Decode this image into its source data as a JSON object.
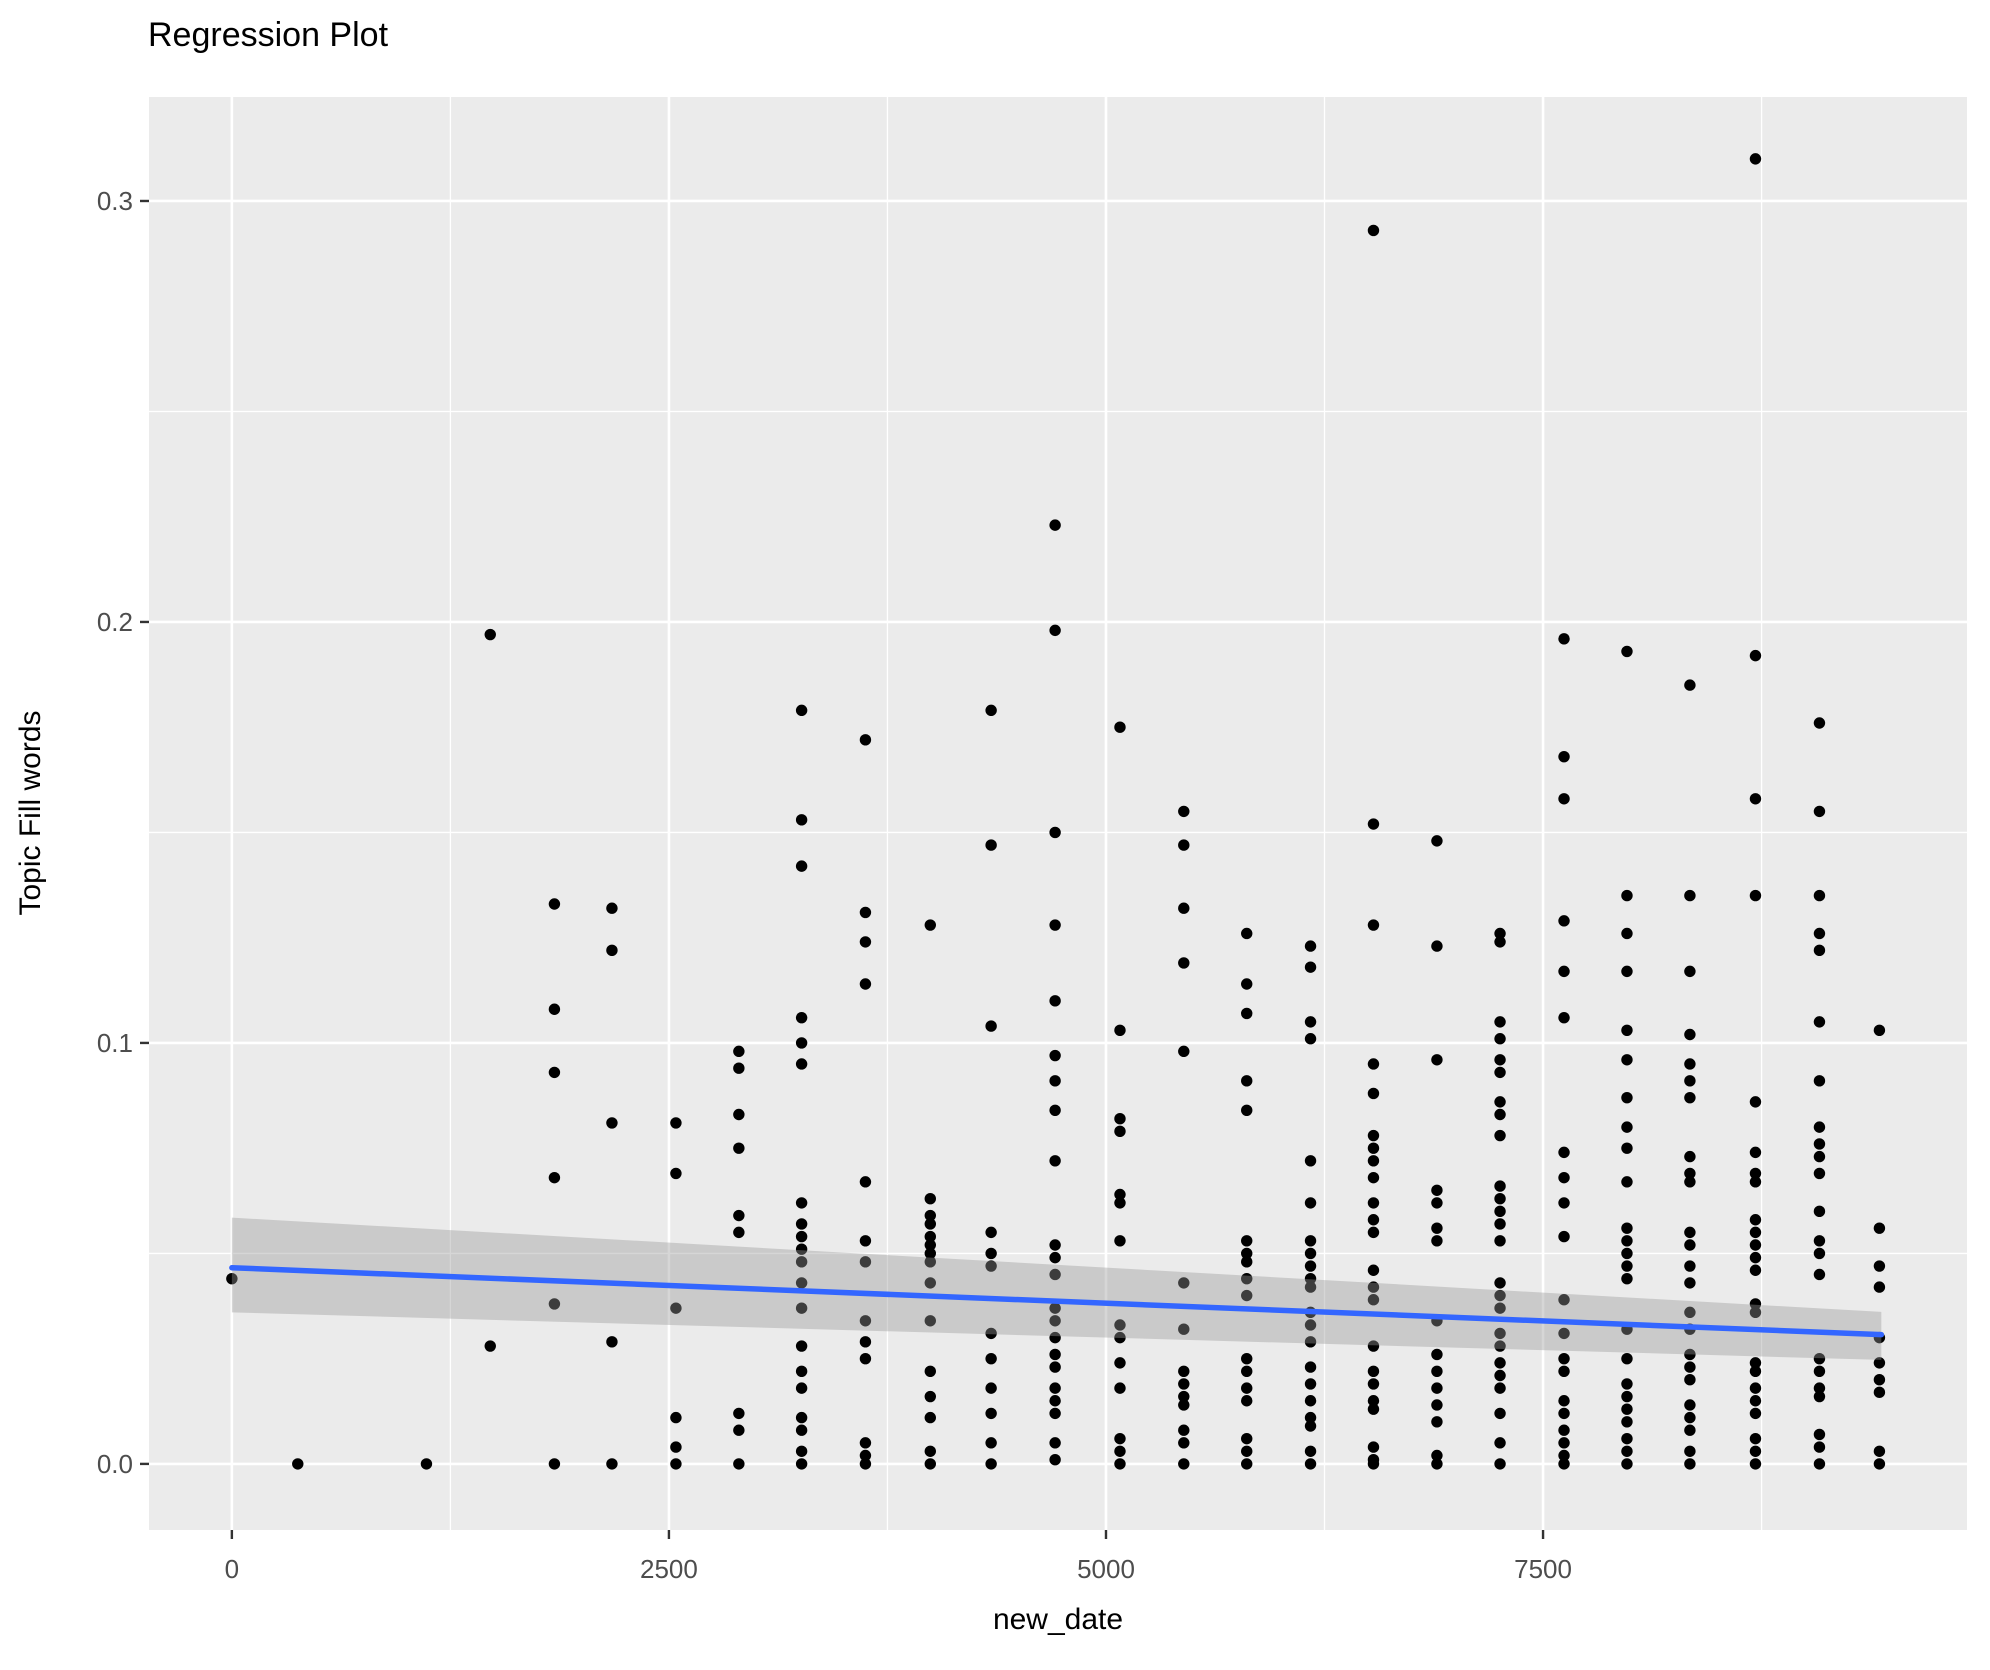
{
  "chart_data": {
    "type": "scatter",
    "title": "Regression Plot",
    "xlabel": "new_date",
    "ylabel": "Topic Fill words",
    "x_ticks": [
      0,
      2500,
      5000,
      7500
    ],
    "x_tick_labels": [
      "0",
      "2500",
      "5000",
      "7500"
    ],
    "x_minor_ticks": [
      1250,
      3750,
      6250,
      8750
    ],
    "y_ticks": [
      0.0,
      0.1,
      0.2,
      0.3
    ],
    "y_tick_labels": [
      "0.0",
      "0.1",
      "0.2",
      "0.3"
    ],
    "y_minor_ticks": [
      0.05,
      0.15,
      0.25
    ],
    "xlim": [
      -474,
      9925
    ],
    "ylim": [
      -0.0157,
      0.3247
    ],
    "grid": "on",
    "legend_position": "none",
    "panel_color": "#EBEBEB",
    "grid_color": "#FFFFFF",
    "point_color": "#000000",
    "tick_label_color": "#4D4D4D",
    "axis_title_color": "#000000",
    "title_color": "#000000",
    "regression": {
      "type": "linear",
      "line_color": "#3366FF",
      "x_start": 0,
      "y_start": 0.0466,
      "x_end": 9435,
      "y_end": 0.0307,
      "ci_band": {
        "color": "#999999",
        "opacity": 0.4,
        "upper_start": 0.0585,
        "lower_start": 0.036,
        "upper_end": 0.0361,
        "lower_end": 0.0247
      }
    },
    "points": [
      [
        0,
        0.044
      ],
      [
        377,
        0.0
      ],
      [
        1113,
        0.0
      ],
      [
        1478,
        0.197
      ],
      [
        1478,
        0.028
      ],
      [
        1845,
        0.133
      ],
      [
        1845,
        0.108
      ],
      [
        1845,
        0.093
      ],
      [
        1845,
        0.068
      ],
      [
        1845,
        0.038
      ],
      [
        1845,
        0.0
      ],
      [
        2174,
        0.132
      ],
      [
        2174,
        0.122
      ],
      [
        2174,
        0.081
      ],
      [
        2174,
        0.029
      ],
      [
        2174,
        0.0
      ],
      [
        2540,
        0.081
      ],
      [
        2540,
        0.069
      ],
      [
        2540,
        0.037
      ],
      [
        2540,
        0.011
      ],
      [
        2540,
        0.004
      ],
      [
        2540,
        0.0
      ],
      [
        2900,
        0.098
      ],
      [
        2900,
        0.094
      ],
      [
        2900,
        0.083
      ],
      [
        2900,
        0.075
      ],
      [
        2900,
        0.059
      ],
      [
        2900,
        0.055
      ],
      [
        2900,
        0.012
      ],
      [
        2900,
        0.008
      ],
      [
        2900,
        0.0
      ],
      [
        3259,
        0.179
      ],
      [
        3259,
        0.153
      ],
      [
        3259,
        0.142
      ],
      [
        3259,
        0.106
      ],
      [
        3259,
        0.1
      ],
      [
        3259,
        0.095
      ],
      [
        3259,
        0.062
      ],
      [
        3259,
        0.057
      ],
      [
        3259,
        0.054
      ],
      [
        3259,
        0.051
      ],
      [
        3259,
        0.048
      ],
      [
        3259,
        0.043
      ],
      [
        3259,
        0.037
      ],
      [
        3259,
        0.028
      ],
      [
        3259,
        0.022
      ],
      [
        3259,
        0.018
      ],
      [
        3259,
        0.011
      ],
      [
        3259,
        0.008
      ],
      [
        3259,
        0.003
      ],
      [
        3259,
        0.0
      ],
      [
        3624,
        0.172
      ],
      [
        3624,
        0.131
      ],
      [
        3624,
        0.124
      ],
      [
        3624,
        0.114
      ],
      [
        3624,
        0.067
      ],
      [
        3624,
        0.053
      ],
      [
        3624,
        0.048
      ],
      [
        3624,
        0.034
      ],
      [
        3624,
        0.029
      ],
      [
        3624,
        0.025
      ],
      [
        3624,
        0.005
      ],
      [
        3624,
        0.002
      ],
      [
        3624,
        0.0
      ],
      [
        3995,
        0.128
      ],
      [
        3995,
        0.063
      ],
      [
        3995,
        0.059
      ],
      [
        3995,
        0.057
      ],
      [
        3995,
        0.054
      ],
      [
        3995,
        0.052
      ],
      [
        3995,
        0.05
      ],
      [
        3995,
        0.048
      ],
      [
        3995,
        0.043
      ],
      [
        3995,
        0.034
      ],
      [
        3995,
        0.022
      ],
      [
        3995,
        0.016
      ],
      [
        3995,
        0.011
      ],
      [
        3995,
        0.003
      ],
      [
        3995,
        0.0
      ],
      [
        4343,
        0.179
      ],
      [
        4343,
        0.147
      ],
      [
        4343,
        0.104
      ],
      [
        4343,
        0.055
      ],
      [
        4343,
        0.05
      ],
      [
        4343,
        0.047
      ],
      [
        4343,
        0.031
      ],
      [
        4343,
        0.025
      ],
      [
        4343,
        0.018
      ],
      [
        4343,
        0.012
      ],
      [
        4343,
        0.005
      ],
      [
        4343,
        0.0
      ],
      [
        4709,
        0.223
      ],
      [
        4709,
        0.198
      ],
      [
        4709,
        0.15
      ],
      [
        4709,
        0.128
      ],
      [
        4709,
        0.11
      ],
      [
        4709,
        0.097
      ],
      [
        4709,
        0.091
      ],
      [
        4709,
        0.084
      ],
      [
        4709,
        0.072
      ],
      [
        4709,
        0.052
      ],
      [
        4709,
        0.049
      ],
      [
        4709,
        0.045
      ],
      [
        4709,
        0.037
      ],
      [
        4709,
        0.034
      ],
      [
        4709,
        0.03
      ],
      [
        4709,
        0.026
      ],
      [
        4709,
        0.023
      ],
      [
        4709,
        0.018
      ],
      [
        4709,
        0.015
      ],
      [
        4709,
        0.012
      ],
      [
        4709,
        0.005
      ],
      [
        4709,
        0.001
      ],
      [
        5080,
        0.175
      ],
      [
        5080,
        0.103
      ],
      [
        5080,
        0.082
      ],
      [
        5080,
        0.079
      ],
      [
        5080,
        0.064
      ],
      [
        5080,
        0.062
      ],
      [
        5080,
        0.053
      ],
      [
        5080,
        0.033
      ],
      [
        5080,
        0.03
      ],
      [
        5080,
        0.024
      ],
      [
        5080,
        0.018
      ],
      [
        5080,
        0.006
      ],
      [
        5080,
        0.003
      ],
      [
        5080,
        0.0
      ],
      [
        5445,
        0.155
      ],
      [
        5445,
        0.147
      ],
      [
        5445,
        0.132
      ],
      [
        5445,
        0.119
      ],
      [
        5445,
        0.098
      ],
      [
        5445,
        0.043
      ],
      [
        5445,
        0.032
      ],
      [
        5445,
        0.022
      ],
      [
        5445,
        0.019
      ],
      [
        5445,
        0.016
      ],
      [
        5445,
        0.014
      ],
      [
        5445,
        0.008
      ],
      [
        5445,
        0.005
      ],
      [
        5445,
        0.0
      ],
      [
        5805,
        0.126
      ],
      [
        5805,
        0.114
      ],
      [
        5805,
        0.107
      ],
      [
        5805,
        0.091
      ],
      [
        5805,
        0.084
      ],
      [
        5805,
        0.053
      ],
      [
        5805,
        0.05
      ],
      [
        5805,
        0.048
      ],
      [
        5805,
        0.044
      ],
      [
        5805,
        0.04
      ],
      [
        5805,
        0.025
      ],
      [
        5805,
        0.022
      ],
      [
        5805,
        0.018
      ],
      [
        5805,
        0.015
      ],
      [
        5805,
        0.006
      ],
      [
        5805,
        0.003
      ],
      [
        5805,
        0.0
      ],
      [
        6170,
        0.123
      ],
      [
        6170,
        0.118
      ],
      [
        6170,
        0.105
      ],
      [
        6170,
        0.101
      ],
      [
        6170,
        0.072
      ],
      [
        6170,
        0.062
      ],
      [
        6170,
        0.053
      ],
      [
        6170,
        0.05
      ],
      [
        6170,
        0.047
      ],
      [
        6170,
        0.044
      ],
      [
        6170,
        0.042
      ],
      [
        6170,
        0.036
      ],
      [
        6170,
        0.033
      ],
      [
        6170,
        0.029
      ],
      [
        6170,
        0.023
      ],
      [
        6170,
        0.019
      ],
      [
        6170,
        0.015
      ],
      [
        6170,
        0.011
      ],
      [
        6170,
        0.009
      ],
      [
        6170,
        0.003
      ],
      [
        6170,
        0.0
      ],
      [
        6530,
        0.293
      ],
      [
        6530,
        0.152
      ],
      [
        6530,
        0.128
      ],
      [
        6530,
        0.095
      ],
      [
        6530,
        0.088
      ],
      [
        6530,
        0.078
      ],
      [
        6530,
        0.075
      ],
      [
        6530,
        0.072
      ],
      [
        6530,
        0.068
      ],
      [
        6530,
        0.062
      ],
      [
        6530,
        0.058
      ],
      [
        6530,
        0.055
      ],
      [
        6530,
        0.046
      ],
      [
        6530,
        0.042
      ],
      [
        6530,
        0.039
      ],
      [
        6530,
        0.028
      ],
      [
        6530,
        0.022
      ],
      [
        6530,
        0.019
      ],
      [
        6530,
        0.015
      ],
      [
        6530,
        0.013
      ],
      [
        6530,
        0.004
      ],
      [
        6530,
        0.001
      ],
      [
        6530,
        0.0
      ],
      [
        6893,
        0.148
      ],
      [
        6893,
        0.123
      ],
      [
        6893,
        0.096
      ],
      [
        6893,
        0.065
      ],
      [
        6893,
        0.062
      ],
      [
        6893,
        0.056
      ],
      [
        6893,
        0.053
      ],
      [
        6893,
        0.034
      ],
      [
        6893,
        0.026
      ],
      [
        6893,
        0.022
      ],
      [
        6893,
        0.018
      ],
      [
        6893,
        0.014
      ],
      [
        6893,
        0.01
      ],
      [
        6893,
        0.002
      ],
      [
        6893,
        0.0
      ],
      [
        7254,
        0.126
      ],
      [
        7254,
        0.124
      ],
      [
        7254,
        0.105
      ],
      [
        7254,
        0.101
      ],
      [
        7254,
        0.096
      ],
      [
        7254,
        0.093
      ],
      [
        7254,
        0.086
      ],
      [
        7254,
        0.083
      ],
      [
        7254,
        0.078
      ],
      [
        7254,
        0.066
      ],
      [
        7254,
        0.063
      ],
      [
        7254,
        0.06
      ],
      [
        7254,
        0.057
      ],
      [
        7254,
        0.053
      ],
      [
        7254,
        0.043
      ],
      [
        7254,
        0.04
      ],
      [
        7254,
        0.037
      ],
      [
        7254,
        0.031
      ],
      [
        7254,
        0.028
      ],
      [
        7254,
        0.024
      ],
      [
        7254,
        0.021
      ],
      [
        7254,
        0.018
      ],
      [
        7254,
        0.012
      ],
      [
        7254,
        0.005
      ],
      [
        7254,
        0.0
      ],
      [
        7620,
        0.196
      ],
      [
        7620,
        0.168
      ],
      [
        7620,
        0.158
      ],
      [
        7620,
        0.129
      ],
      [
        7620,
        0.117
      ],
      [
        7620,
        0.106
      ],
      [
        7620,
        0.074
      ],
      [
        7620,
        0.068
      ],
      [
        7620,
        0.062
      ],
      [
        7620,
        0.054
      ],
      [
        7620,
        0.039
      ],
      [
        7620,
        0.031
      ],
      [
        7620,
        0.025
      ],
      [
        7620,
        0.022
      ],
      [
        7620,
        0.015
      ],
      [
        7620,
        0.012
      ],
      [
        7620,
        0.008
      ],
      [
        7620,
        0.005
      ],
      [
        7620,
        0.002
      ],
      [
        7620,
        0.0
      ],
      [
        7980,
        0.193
      ],
      [
        7980,
        0.135
      ],
      [
        7980,
        0.126
      ],
      [
        7980,
        0.117
      ],
      [
        7980,
        0.103
      ],
      [
        7980,
        0.096
      ],
      [
        7980,
        0.087
      ],
      [
        7980,
        0.08
      ],
      [
        7980,
        0.075
      ],
      [
        7980,
        0.067
      ],
      [
        7980,
        0.056
      ],
      [
        7980,
        0.053
      ],
      [
        7980,
        0.05
      ],
      [
        7980,
        0.047
      ],
      [
        7980,
        0.044
      ],
      [
        7980,
        0.032
      ],
      [
        7980,
        0.025
      ],
      [
        7980,
        0.019
      ],
      [
        7980,
        0.016
      ],
      [
        7980,
        0.013
      ],
      [
        7980,
        0.01
      ],
      [
        7980,
        0.006
      ],
      [
        7980,
        0.003
      ],
      [
        7980,
        0.0
      ],
      [
        8340,
        0.185
      ],
      [
        8340,
        0.135
      ],
      [
        8340,
        0.117
      ],
      [
        8340,
        0.102
      ],
      [
        8340,
        0.095
      ],
      [
        8340,
        0.091
      ],
      [
        8340,
        0.087
      ],
      [
        8340,
        0.073
      ],
      [
        8340,
        0.069
      ],
      [
        8340,
        0.067
      ],
      [
        8340,
        0.055
      ],
      [
        8340,
        0.052
      ],
      [
        8340,
        0.047
      ],
      [
        8340,
        0.043
      ],
      [
        8340,
        0.036
      ],
      [
        8340,
        0.032
      ],
      [
        8340,
        0.026
      ],
      [
        8340,
        0.023
      ],
      [
        8340,
        0.02
      ],
      [
        8340,
        0.014
      ],
      [
        8340,
        0.011
      ],
      [
        8340,
        0.008
      ],
      [
        8340,
        0.003
      ],
      [
        8340,
        0.0
      ],
      [
        8715,
        0.31
      ],
      [
        8715,
        0.192
      ],
      [
        8715,
        0.158
      ],
      [
        8715,
        0.135
      ],
      [
        8715,
        0.086
      ],
      [
        8715,
        0.074
      ],
      [
        8715,
        0.069
      ],
      [
        8715,
        0.067
      ],
      [
        8715,
        0.058
      ],
      [
        8715,
        0.055
      ],
      [
        8715,
        0.052
      ],
      [
        8715,
        0.049
      ],
      [
        8715,
        0.046
      ],
      [
        8715,
        0.038
      ],
      [
        8715,
        0.036
      ],
      [
        8715,
        0.024
      ],
      [
        8715,
        0.022
      ],
      [
        8715,
        0.018
      ],
      [
        8715,
        0.015
      ],
      [
        8715,
        0.012
      ],
      [
        8715,
        0.006
      ],
      [
        8715,
        0.003
      ],
      [
        8715,
        0.0
      ],
      [
        9081,
        0.176
      ],
      [
        9081,
        0.155
      ],
      [
        9081,
        0.135
      ],
      [
        9081,
        0.126
      ],
      [
        9081,
        0.122
      ],
      [
        9081,
        0.105
      ],
      [
        9081,
        0.091
      ],
      [
        9081,
        0.08
      ],
      [
        9081,
        0.076
      ],
      [
        9081,
        0.073
      ],
      [
        9081,
        0.069
      ],
      [
        9081,
        0.06
      ],
      [
        9081,
        0.053
      ],
      [
        9081,
        0.05
      ],
      [
        9081,
        0.045
      ],
      [
        9081,
        0.025
      ],
      [
        9081,
        0.022
      ],
      [
        9081,
        0.018
      ],
      [
        9081,
        0.016
      ],
      [
        9081,
        0.007
      ],
      [
        9081,
        0.004
      ],
      [
        9081,
        0.0
      ],
      [
        9424,
        0.103
      ],
      [
        9424,
        0.056
      ],
      [
        9424,
        0.047
      ],
      [
        9424,
        0.042
      ],
      [
        9424,
        0.03
      ],
      [
        9424,
        0.024
      ],
      [
        9424,
        0.02
      ],
      [
        9424,
        0.017
      ],
      [
        9424,
        0.003
      ],
      [
        9424,
        0.0
      ]
    ]
  }
}
